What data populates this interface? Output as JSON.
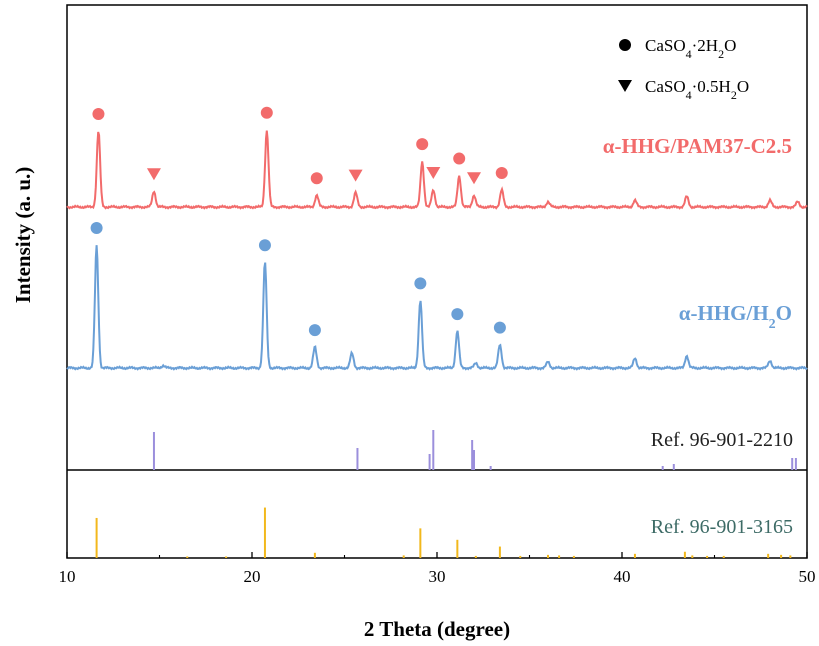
{
  "chart_data": {
    "type": "line",
    "xlabel": "2 Theta (degree)",
    "ylabel": "Intensity (a. u.)",
    "xlim": [
      10,
      50
    ],
    "xticks": [
      "10",
      "20",
      "30",
      "40",
      "50"
    ],
    "legend": {
      "placement": "top-right",
      "entries": [
        {
          "marker": "circle",
          "html": "CaSO<tspan baseline-shift='sub' font-size='12'>4</tspan>·2H<tspan baseline-shift='sub' font-size='12'>2</tspan>O",
          "text": "CaSO4·2H2O"
        },
        {
          "marker": "triangle-down",
          "html": "CaSO<tspan baseline-shift='sub' font-size='12'>4</tspan>·0.5H<tspan baseline-shift='sub' font-size='12'>2</tspan>O",
          "text": "CaSO4·0.5H2O"
        }
      ]
    },
    "series": [
      {
        "name": "α-HHG/PAM37-C2.5",
        "color": "#f26b6b",
        "baseline": 0,
        "peaks": [
          {
            "x": 11.7,
            "h": 0.58
          },
          {
            "x": 14.7,
            "h": 0.12
          },
          {
            "x": 20.8,
            "h": 0.59
          },
          {
            "x": 23.5,
            "h": 0.09
          },
          {
            "x": 25.6,
            "h": 0.11
          },
          {
            "x": 29.2,
            "h": 0.35
          },
          {
            "x": 29.8,
            "h": 0.13
          },
          {
            "x": 31.2,
            "h": 0.24
          },
          {
            "x": 32.0,
            "h": 0.09
          },
          {
            "x": 33.5,
            "h": 0.13
          },
          {
            "x": 36.0,
            "h": 0.04
          },
          {
            "x": 40.7,
            "h": 0.05
          },
          {
            "x": 43.5,
            "h": 0.08
          },
          {
            "x": 48.0,
            "h": 0.05
          },
          {
            "x": 49.5,
            "h": 0.04
          }
        ],
        "markers": [
          {
            "x": 11.7,
            "type": "circle"
          },
          {
            "x": 14.7,
            "type": "triangle"
          },
          {
            "x": 20.8,
            "type": "circle"
          },
          {
            "x": 23.5,
            "type": "circle"
          },
          {
            "x": 25.6,
            "type": "triangle"
          },
          {
            "x": 29.2,
            "type": "circle"
          },
          {
            "x": 29.8,
            "type": "triangle"
          },
          {
            "x": 31.2,
            "type": "circle"
          },
          {
            "x": 32.0,
            "type": "triangle"
          },
          {
            "x": 33.5,
            "type": "circle"
          }
        ]
      },
      {
        "name": "α-HHG/H2O",
        "color": "#6a9fd6",
        "baseline": 0,
        "peaks": [
          {
            "x": 11.6,
            "h": 1.0
          },
          {
            "x": 15.2,
            "h": 0.02
          },
          {
            "x": 20.7,
            "h": 0.86
          },
          {
            "x": 23.4,
            "h": 0.17
          },
          {
            "x": 25.4,
            "h": 0.12
          },
          {
            "x": 29.1,
            "h": 0.55
          },
          {
            "x": 31.1,
            "h": 0.3
          },
          {
            "x": 32.1,
            "h": 0.04
          },
          {
            "x": 33.4,
            "h": 0.19
          },
          {
            "x": 36.0,
            "h": 0.05
          },
          {
            "x": 40.7,
            "h": 0.08
          },
          {
            "x": 43.5,
            "h": 0.1
          },
          {
            "x": 48.0,
            "h": 0.06
          }
        ],
        "markers": [
          {
            "x": 11.6,
            "type": "circle"
          },
          {
            "x": 20.7,
            "type": "circle"
          },
          {
            "x": 23.4,
            "type": "circle"
          },
          {
            "x": 29.1,
            "type": "circle"
          },
          {
            "x": 31.1,
            "type": "circle"
          },
          {
            "x": 33.4,
            "type": "circle"
          }
        ]
      }
    ],
    "references": [
      {
        "name": "Ref. 96-901-2210",
        "color": "#9b8fdc",
        "label_color": "#222222",
        "sticks": [
          {
            "x": 14.7,
            "h": 0.95
          },
          {
            "x": 25.7,
            "h": 0.55
          },
          {
            "x": 29.6,
            "h": 0.4
          },
          {
            "x": 29.8,
            "h": 1.0
          },
          {
            "x": 31.9,
            "h": 0.75
          },
          {
            "x": 32.0,
            "h": 0.5
          },
          {
            "x": 32.9,
            "h": 0.1
          },
          {
            "x": 42.2,
            "h": 0.1
          },
          {
            "x": 42.8,
            "h": 0.15
          },
          {
            "x": 49.2,
            "h": 0.3
          },
          {
            "x": 49.4,
            "h": 0.3
          }
        ]
      },
      {
        "name": "Ref. 96-901-3165",
        "color": "#f2b81c",
        "label_color": "#3d6b66",
        "sticks": [
          {
            "x": 11.6,
            "h": 0.77
          },
          {
            "x": 16.5,
            "h": 0.03
          },
          {
            "x": 18.6,
            "h": 0.03
          },
          {
            "x": 20.7,
            "h": 0.97
          },
          {
            "x": 23.4,
            "h": 0.1
          },
          {
            "x": 28.2,
            "h": 0.05
          },
          {
            "x": 29.1,
            "h": 0.57
          },
          {
            "x": 31.1,
            "h": 0.35
          },
          {
            "x": 32.1,
            "h": 0.04
          },
          {
            "x": 33.4,
            "h": 0.22
          },
          {
            "x": 34.5,
            "h": 0.04
          },
          {
            "x": 36.0,
            "h": 0.06
          },
          {
            "x": 36.6,
            "h": 0.05
          },
          {
            "x": 37.4,
            "h": 0.04
          },
          {
            "x": 40.7,
            "h": 0.08
          },
          {
            "x": 43.4,
            "h": 0.12
          },
          {
            "x": 43.8,
            "h": 0.05
          },
          {
            "x": 44.6,
            "h": 0.04
          },
          {
            "x": 45.5,
            "h": 0.04
          },
          {
            "x": 47.9,
            "h": 0.08
          },
          {
            "x": 48.6,
            "h": 0.06
          },
          {
            "x": 49.1,
            "h": 0.05
          }
        ]
      }
    ]
  }
}
